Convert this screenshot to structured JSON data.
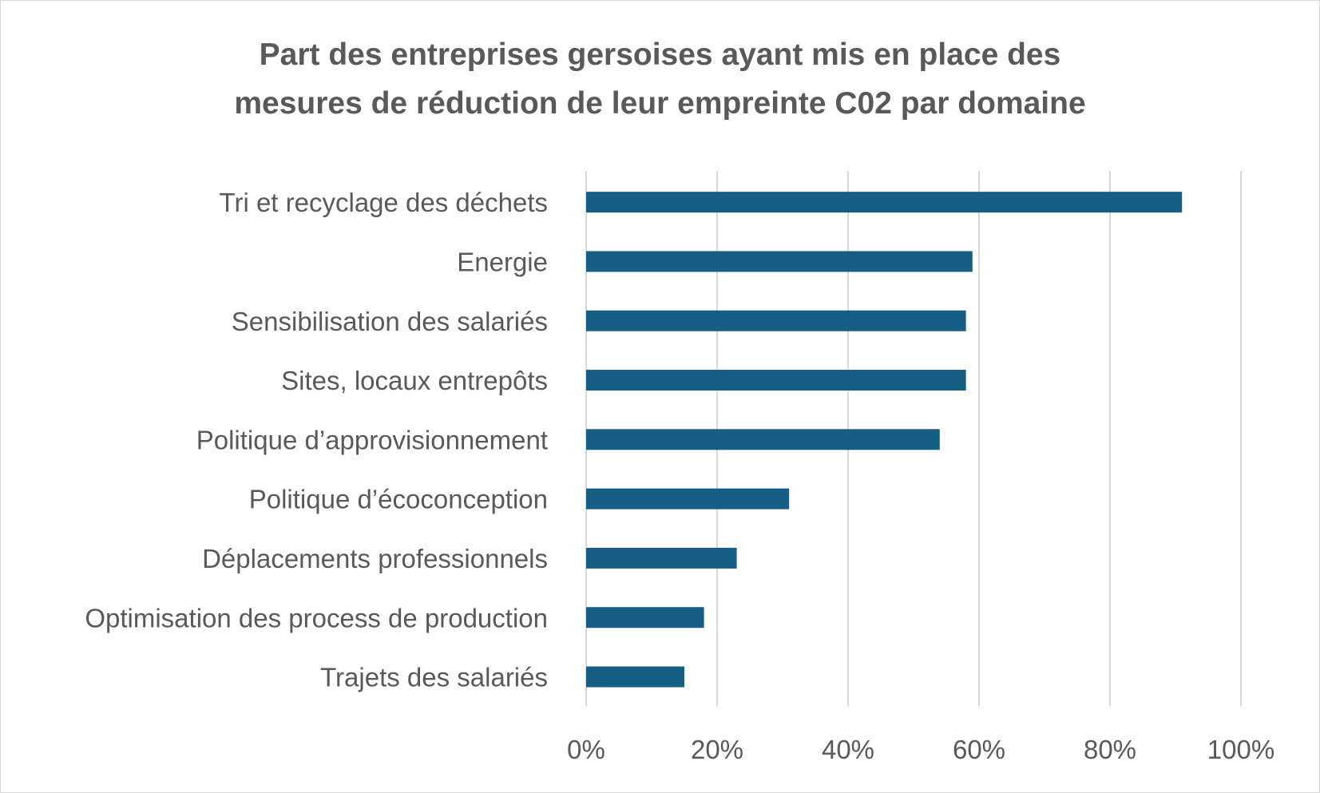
{
  "chart_data": {
    "type": "bar",
    "orientation": "horizontal",
    "title_lines": [
      "Part des entreprises gersoises ayant mis en place des",
      "mesures de réduction de leur empreinte C02 par domaine"
    ],
    "categories": [
      "Tri et recyclage des déchets",
      "Energie",
      "Sensibilisation des salariés",
      "Sites, locaux entrepôts",
      "Politique d’approvisionnement",
      "Politique d’écoconception",
      "Déplacements professionnels",
      "Optimisation des process de production",
      "Trajets des salariés"
    ],
    "values": [
      91,
      59,
      58,
      58,
      54,
      31,
      23,
      18,
      15
    ],
    "value_unit": "%",
    "xlim": [
      0,
      100
    ],
    "x_ticks": [
      0,
      20,
      40,
      60,
      80,
      100
    ],
    "x_tick_labels": [
      "0%",
      "20%",
      "40%",
      "60%",
      "80%",
      "100%"
    ],
    "grid": "vertical",
    "legend": "none",
    "bar_color": "#165e83",
    "grid_color": "#d9d9d9",
    "text_color": "#595959"
  }
}
